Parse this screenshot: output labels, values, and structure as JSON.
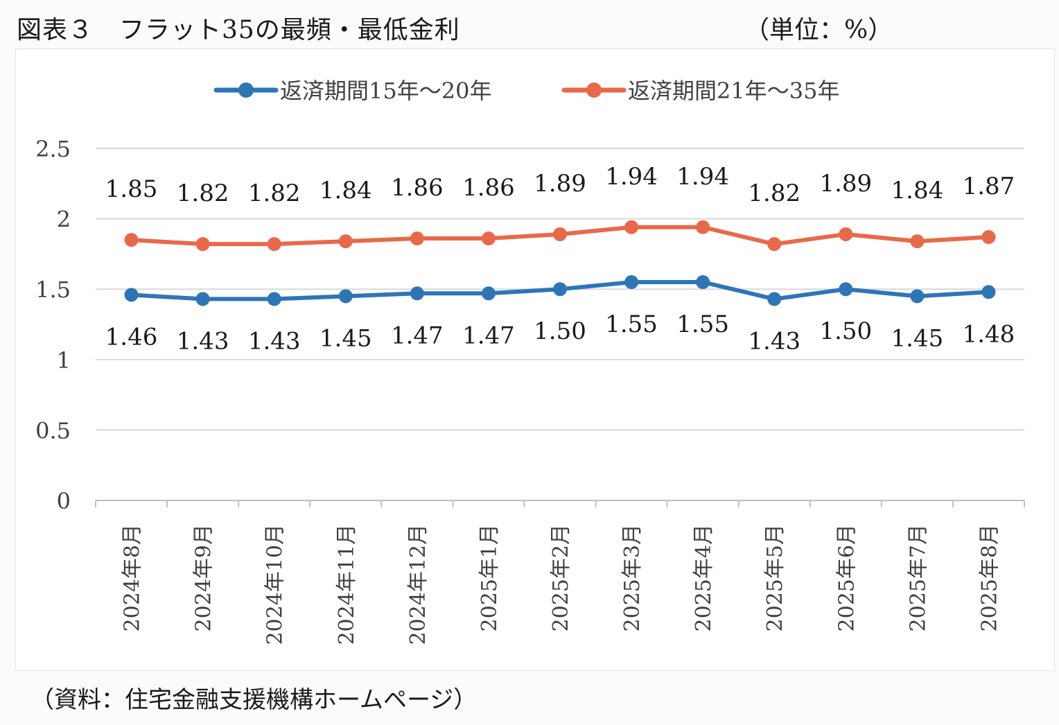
{
  "header": {
    "figure_title": "図表３　フラット35の最頻・最低金利",
    "unit_note": "（単位：%）"
  },
  "chart_data": {
    "type": "line",
    "categories": [
      "2024年8月",
      "2024年9月",
      "2024年10月",
      "2024年11月",
      "2024年12月",
      "2025年1月",
      "2025年2月",
      "2025年3月",
      "2025年4月",
      "2025年5月",
      "2025年6月",
      "2025年7月",
      "2025年8月"
    ],
    "series": [
      {
        "name": "返済期間15年～20年",
        "color": "#2e75b6",
        "values": [
          1.46,
          1.43,
          1.43,
          1.45,
          1.47,
          1.47,
          1.5,
          1.55,
          1.55,
          1.43,
          1.5,
          1.45,
          1.48
        ]
      },
      {
        "name": "返済期間21年～35年",
        "color": "#e8694a",
        "values": [
          1.85,
          1.82,
          1.82,
          1.84,
          1.86,
          1.86,
          1.89,
          1.94,
          1.94,
          1.82,
          1.89,
          1.84,
          1.87
        ]
      }
    ],
    "ylim": [
      0,
      2.5
    ],
    "yticks": [
      "0",
      "0.5",
      "1",
      "1.5",
      "2",
      "2.5"
    ],
    "grid": true,
    "legend": "top-center"
  },
  "footer": {
    "source": "（資料：住宅金融支援機構ホームページ）"
  }
}
